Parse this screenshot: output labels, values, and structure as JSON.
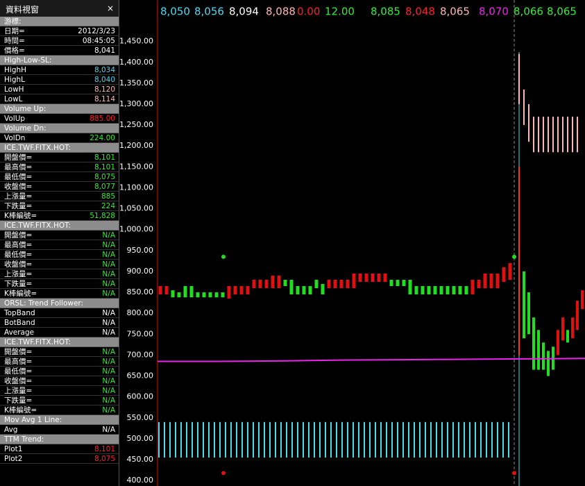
{
  "panel": {
    "title": "資料視窗",
    "close": "×",
    "sections": [
      {
        "title": "游標:",
        "rows": [
          [
            "日期=",
            "2012/3/23",
            "#ffffff"
          ],
          [
            "時間=",
            "08:45:05",
            "#ffffff"
          ],
          [
            "價格=",
            "8,041",
            "#ffffff"
          ]
        ]
      },
      {
        "title": "High-Low-SL:",
        "rows": [
          [
            "HighH",
            "8,034",
            "#4fd8f0"
          ],
          [
            "HighL",
            "8,040",
            "#4fd8f0"
          ],
          [
            "LowH",
            "8,120",
            "#ffb6b6"
          ],
          [
            "LowL",
            "8,114",
            "#ffb6b6"
          ]
        ]
      },
      {
        "title": "Volume Up:",
        "rows": [
          [
            "VolUp",
            "885.00",
            "#ff2020"
          ]
        ]
      },
      {
        "title": "Volume Dn:",
        "rows": [
          [
            "VolDn",
            "224.00",
            "#33ee33"
          ]
        ]
      },
      {
        "title": "ICE.TWF.FITX.HOT:",
        "rows": [
          [
            "開盤價=",
            "8,101",
            "#33ee33"
          ],
          [
            "最高價=",
            "8,101",
            "#33ee33"
          ],
          [
            "最低價=",
            "8,075",
            "#33ee33"
          ],
          [
            "收盤價=",
            "8,077",
            "#33ee33"
          ],
          [
            "上漲量=",
            "885",
            "#33ee33"
          ],
          [
            "下跌量=",
            "224",
            "#33ee33"
          ],
          [
            "K棒編號=",
            "51,828",
            "#33ee33"
          ]
        ]
      },
      {
        "title": "ICE.TWF.FITX.HOT:",
        "rows": [
          [
            "開盤價=",
            "N/A",
            "#33ee33"
          ],
          [
            "最高價=",
            "N/A",
            "#33ee33"
          ],
          [
            "最低價=",
            "N/A",
            "#33ee33"
          ],
          [
            "收盤價=",
            "N/A",
            "#33ee33"
          ],
          [
            "上漲量=",
            "N/A",
            "#33ee33"
          ],
          [
            "下跌量=",
            "N/A",
            "#33ee33"
          ],
          [
            "K棒編號=",
            "N/A",
            "#33ee33"
          ]
        ]
      },
      {
        "title": "ORSL: Trend Follower:",
        "rows": [
          [
            "TopBand",
            "N/A",
            "#ffffff"
          ],
          [
            "BotBand",
            "N/A",
            "#ffffff"
          ],
          [
            "Average",
            "N/A",
            "#ffffff"
          ]
        ]
      },
      {
        "title": "ICE.TWF.FITX.HOT:",
        "rows": [
          [
            "開盤價=",
            "N/A",
            "#33ee33"
          ],
          [
            "最高價=",
            "N/A",
            "#33ee33"
          ],
          [
            "最低價=",
            "N/A",
            "#33ee33"
          ],
          [
            "收盤價=",
            "N/A",
            "#33ee33"
          ],
          [
            "上漲量=",
            "N/A",
            "#33ee33"
          ],
          [
            "下跌量=",
            "N/A",
            "#33ee33"
          ],
          [
            "K棒編號=",
            "N/A",
            "#33ee33"
          ]
        ]
      },
      {
        "title": "Mov Avg 1 Line:",
        "rows": [
          [
            "Avg",
            "N/A",
            "#ffffff"
          ]
        ]
      },
      {
        "title": "TTM Trend:",
        "rows": [
          [
            "Plot1",
            "8,101",
            "#ff2020"
          ],
          [
            "Plot2",
            "8,075",
            "#ff2020"
          ]
        ]
      }
    ]
  },
  "chart_data": {
    "type": "candle",
    "header": [
      [
        "8,050",
        "#4fd8f0"
      ],
      [
        "8,056",
        "#4fd8f0"
      ],
      [
        "8,094",
        "#ffffff"
      ],
      [
        "8,088",
        "#ffb6b6"
      ],
      [
        "0.00",
        "#ff2020"
      ],
      [
        "12.00",
        "#33ee33"
      ],
      [
        "8,085",
        "#33ee33"
      ],
      [
        "8,048",
        "#ff2020"
      ],
      [
        "8,065",
        "#ffb6b6"
      ],
      [
        "8,070",
        "#ee22ee"
      ],
      [
        "8,066",
        "#33ee33"
      ],
      [
        "8,065",
        "#33ee33"
      ]
    ],
    "ylim": [
      387,
      1549
    ],
    "yticks": [
      {
        "value": 400,
        "label": "400.00"
      },
      {
        "value": 450,
        "label": "450.00"
      },
      {
        "value": 500,
        "label": "500.00"
      },
      {
        "value": 550,
        "label": "550.00"
      },
      {
        "value": 600,
        "label": "600.00"
      },
      {
        "value": 650,
        "label": "650.00"
      },
      {
        "value": 700,
        "label": "700.00"
      },
      {
        "value": 750,
        "label": "750.00"
      },
      {
        "value": 800,
        "label": "800.00"
      },
      {
        "value": 850,
        "label": "850.00"
      },
      {
        "value": 900,
        "label": "900.00"
      },
      {
        "value": 950,
        "label": "950.00"
      },
      {
        "value": 1000,
        "label": "1,000.00"
      },
      {
        "value": 1050,
        "label": "1,050.00"
      },
      {
        "value": 1100,
        "label": "1,100.00"
      },
      {
        "value": 1150,
        "label": "1,150.00"
      },
      {
        "value": 1200,
        "label": "1,200.00"
      },
      {
        "value": 1250,
        "label": "1,250.00"
      },
      {
        "value": 1300,
        "label": "1,300.00"
      },
      {
        "value": 1350,
        "label": "1,350.00"
      },
      {
        "value": 1400,
        "label": "1,400.00"
      },
      {
        "value": 1450,
        "label": "1,450.00"
      }
    ],
    "up_color": "#e01010",
    "down_color": "#22dd22",
    "pre": {
      "low": [
        845,
        845,
        838,
        838,
        838,
        838,
        838,
        838,
        838,
        838,
        838,
        835,
        845,
        845,
        845,
        860,
        860,
        860,
        860,
        860,
        865,
        845,
        845,
        845,
        845,
        860,
        845,
        860,
        860,
        860,
        860,
        860,
        875,
        875,
        875,
        875,
        875,
        865,
        865,
        865,
        845,
        845,
        845,
        845,
        845,
        845,
        845,
        845,
        845,
        845,
        845,
        860,
        860,
        860,
        860,
        875,
        880
      ],
      "high": [
        865,
        865,
        855,
        850,
        865,
        865,
        850,
        850,
        850,
        850,
        850,
        865,
        865,
        865,
        865,
        880,
        880,
        880,
        890,
        890,
        880,
        880,
        865,
        865,
        865,
        880,
        870,
        880,
        880,
        880,
        880,
        895,
        895,
        895,
        895,
        895,
        895,
        880,
        880,
        880,
        880,
        865,
        865,
        865,
        865,
        865,
        865,
        865,
        865,
        865,
        880,
        880,
        895,
        895,
        895,
        910,
        920
      ],
      "up": [
        true,
        true,
        false,
        false,
        false,
        false,
        false,
        false,
        false,
        false,
        false,
        true,
        true,
        true,
        true,
        true,
        true,
        true,
        true,
        true,
        false,
        false,
        false,
        false,
        false,
        false,
        false,
        true,
        true,
        true,
        true,
        true,
        true,
        true,
        true,
        true,
        true,
        false,
        false,
        false,
        false,
        false,
        false,
        false,
        false,
        false,
        false,
        false,
        false,
        false,
        true,
        true,
        true,
        true,
        true,
        true,
        true
      ]
    },
    "post": {
      "low": [
        740,
        750,
        665,
        665,
        665,
        650,
        665,
        700,
        735,
        730,
        740,
        760,
        810
      ],
      "high": [
        900,
        850,
        790,
        760,
        730,
        710,
        720,
        760,
        790,
        760,
        790,
        830,
        855
      ],
      "up": [
        false,
        false,
        false,
        false,
        false,
        false,
        false,
        true,
        true,
        false,
        true,
        true,
        true
      ]
    },
    "pink": {
      "color": "#ffb6b6",
      "low": [
        1300,
        1250,
        1210,
        1185,
        1185,
        1185,
        1185,
        1185,
        1185,
        1185,
        1185,
        1185,
        1185
      ],
      "high": [
        1420,
        1335,
        1300,
        1270,
        1270,
        1270,
        1270,
        1270,
        1270,
        1270,
        1270,
        1270,
        1270
      ]
    },
    "spike": {
      "color": "#ff3030",
      "low": 700,
      "high": 1150
    },
    "cyan": {
      "color": "#4fd8f0",
      "base": 455,
      "values": [
        540,
        540,
        540,
        540,
        540,
        540,
        540,
        540,
        540,
        540,
        540,
        540,
        540,
        540,
        540,
        540,
        540,
        540,
        540,
        540,
        540,
        540,
        540,
        540,
        540,
        540,
        540,
        540,
        540,
        540,
        540,
        540,
        540,
        540,
        540,
        540,
        540,
        540,
        540,
        540,
        540,
        540,
        540,
        540,
        540,
        540,
        540,
        540,
        540,
        540,
        540,
        540,
        540,
        540,
        540,
        540,
        540,
        540,
        540,
        540,
        540,
        540,
        540,
        540
      ]
    },
    "magenta": {
      "color": "#ee22ee",
      "values": [
        685,
        685,
        686,
        688,
        689,
        690,
        691,
        692
      ]
    },
    "dots": {
      "green": [
        935,
        935
      ],
      "red": [
        418,
        418
      ]
    }
  }
}
